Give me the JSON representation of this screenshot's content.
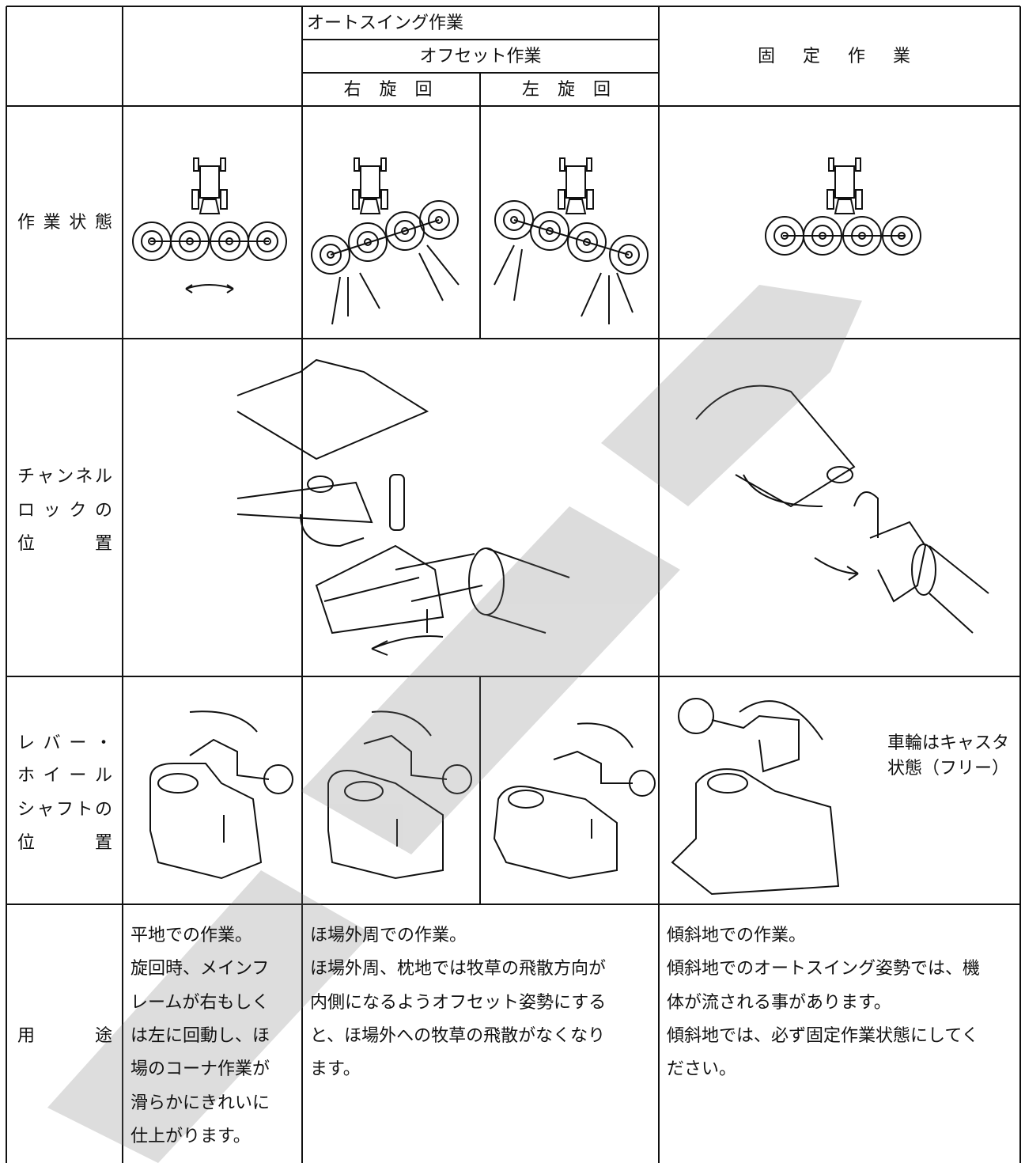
{
  "header": {
    "auto_swing": "オートスイング作業",
    "offset": "オフセット作業",
    "right_turn": "右 旋 回",
    "left_turn": "左 旋 回",
    "fixed": "固 定 作 業"
  },
  "row_labels": {
    "work_state": "作業状態",
    "channel_lock": [
      "チャンネル",
      "ロックの",
      "位 置"
    ],
    "lever": [
      "レバー・",
      "ホイール",
      "シャフトの",
      "位 置"
    ],
    "usage": "用 途"
  },
  "lever_note": [
    "車輪はキャスタ",
    "状態（フリー）"
  ],
  "usage": {
    "auto_swing": [
      "平地での作業。",
      "旋回時、メインフ",
      "レームが右もしく",
      "は左に回動し、ほ",
      "場のコーナ作業が",
      "滑らかにきれいに",
      "仕上がります。"
    ],
    "offset": [
      "ほ場外周での作業。",
      "ほ場外周、枕地では牧草の飛散方向が",
      "内側になるようオフセット姿勢にする",
      "と、ほ場外への牧草の飛散がなくなり",
      "ます。"
    ],
    "fixed": [
      "傾斜地での作業。",
      "傾斜地でのオートスイング姿勢では、機",
      "体が流される事があります。",
      "傾斜地では、必ず固定作業状態にしてく",
      "ださい。"
    ]
  }
}
